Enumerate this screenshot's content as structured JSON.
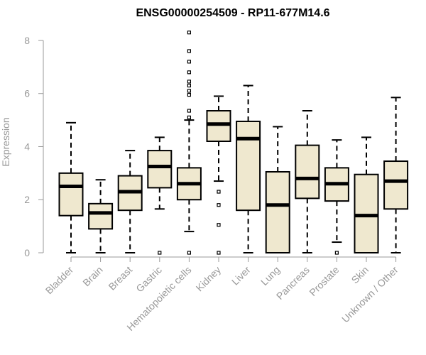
{
  "chart_data": {
    "type": "boxplot",
    "title": "ENSG00000254509 - RP11-677M14.6",
    "xlabel": "",
    "ylabel": "Expression",
    "ylim": [
      0,
      8.4
    ],
    "yticks": [
      "0",
      "2",
      "4",
      "6",
      "8"
    ],
    "box_fill": "#efe8cf",
    "box_stroke": "#000000",
    "categories": [
      "Bladder",
      "Brain",
      "Breast",
      "Gastric",
      "Hematopoietic cells",
      "Kidney",
      "Liver",
      "Lung",
      "Pancreas",
      "Prostate",
      "Skin",
      "Unknown / Other"
    ],
    "boxes": [
      {
        "min": 0.0,
        "q1": 1.4,
        "median": 2.5,
        "q3": 3.0,
        "max": 4.9,
        "outliers": []
      },
      {
        "min": 0.0,
        "q1": 0.9,
        "median": 1.5,
        "q3": 1.85,
        "max": 2.75,
        "outliers": []
      },
      {
        "min": 0.0,
        "q1": 1.6,
        "median": 2.3,
        "q3": 2.9,
        "max": 3.85,
        "outliers": []
      },
      {
        "min": 1.65,
        "q1": 2.45,
        "median": 3.25,
        "q3": 3.85,
        "max": 4.35,
        "outliers": [
          0.0
        ]
      },
      {
        "min": 0.8,
        "q1": 2.0,
        "median": 2.6,
        "q3": 3.2,
        "max": 5.0,
        "outliers": [
          0.0,
          5.1,
          5.35,
          5.95,
          6.1,
          6.3,
          6.45,
          6.8,
          7.2,
          7.6,
          8.3
        ]
      },
      {
        "min": 2.7,
        "q1": 4.2,
        "median": 4.85,
        "q3": 5.35,
        "max": 5.9,
        "outliers": [
          0.0,
          1.05,
          1.8,
          2.3
        ]
      },
      {
        "min": 0.0,
        "q1": 1.6,
        "median": 4.3,
        "q3": 4.95,
        "max": 6.3,
        "outliers": []
      },
      {
        "min": 0.0,
        "q1": 0.0,
        "median": 1.8,
        "q3": 3.05,
        "max": 4.75,
        "outliers": []
      },
      {
        "min": 0.0,
        "q1": 2.05,
        "median": 2.8,
        "q3": 4.05,
        "max": 5.35,
        "outliers": []
      },
      {
        "min": 0.4,
        "q1": 1.95,
        "median": 2.6,
        "q3": 3.2,
        "max": 4.25,
        "outliers": [
          0.0
        ]
      },
      {
        "min": 0.0,
        "q1": 0.0,
        "median": 1.4,
        "q3": 2.95,
        "max": 4.35,
        "outliers": []
      },
      {
        "min": 0.0,
        "q1": 1.65,
        "median": 2.7,
        "q3": 3.45,
        "max": 5.85,
        "outliers": []
      }
    ]
  }
}
